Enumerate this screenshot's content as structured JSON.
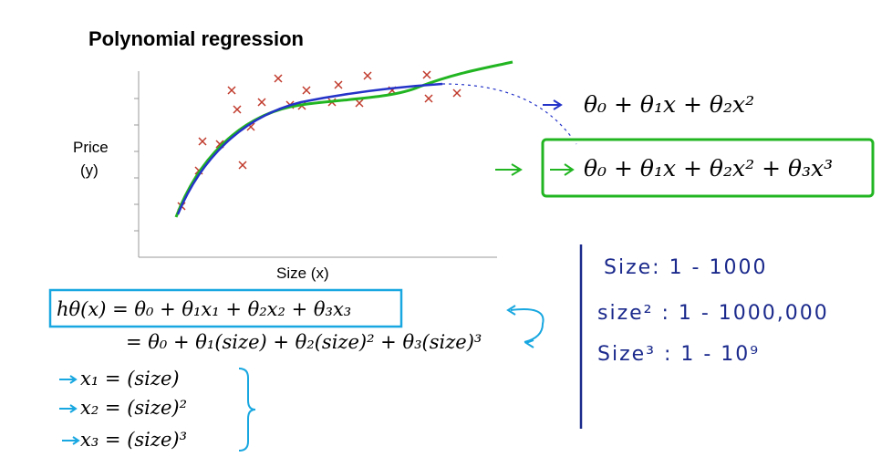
{
  "header": {
    "title": "Polynomial regression"
  },
  "plot": {
    "y_label_line1": "Price",
    "y_label_line2": "(y)",
    "x_label": "Size (x)"
  },
  "models": [
    "θ₀ + θ₁x + θ₂x²",
    "θ₀ + θ₁x + θ₂x² + θ₃x³"
  ],
  "hypothesis": {
    "line1": "hθ(x) = θ₀ + θ₁x₁ + θ₂x₂ + θ₃x₃",
    "line2": "= θ₀ + θ₁(size) + θ₂(size)² + θ₃(size)³"
  },
  "features": [
    "x₁ = (size)",
    "x₂ = (size)²",
    "x₃ = (size)³"
  ],
  "notes": [
    "Size:  1 - 1000",
    "size² :  1 - 1000,000",
    "Size³ :  1 - 10⁹"
  ]
}
